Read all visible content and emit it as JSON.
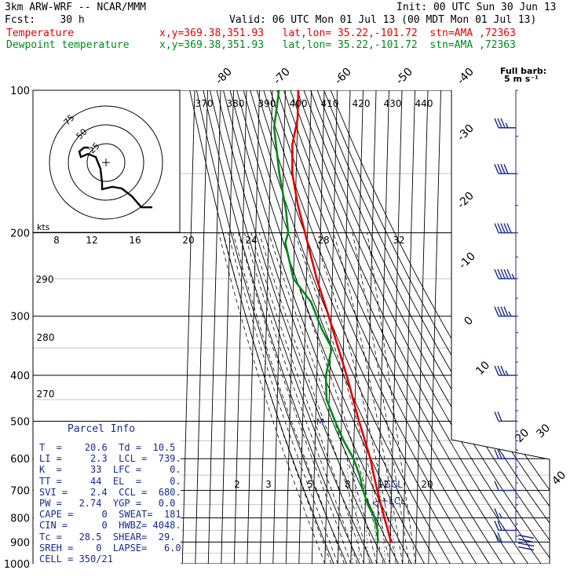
{
  "header": {
    "model": "3km ARW-WRF -- NCAR/MMM",
    "init": "Init: 00 UTC Sun 30 Jun 13",
    "fcst": "Fcst:    30 h",
    "valid": "Valid: 06 UTC Mon 01 Jul 13 (00 MDT Mon 01 Jul 13)",
    "temp_label": "Temperature",
    "temp_loc": "x,y=369.38,351.93   lat,lon= 35.22,-101.72  stn=AMA ,72363",
    "dew_label": "Dewpoint temperature",
    "dew_loc": "x,y=369.38,351.93   lat,lon= 35.22,-101.72  stn=AMA ,72363",
    "full_barb": "Full barb:",
    "full_barb_unit": "5 m s⁻¹"
  },
  "colors": {
    "temperature": "#e10000",
    "dewpoint": "#00891a",
    "wind": "#1a2a8c",
    "grid": "#000000"
  },
  "parcel": {
    "title": "Parcel Info",
    "rows": [
      "T  =    20.6  Td =  10.5",
      "LI =     2.3  LCL =  739.",
      "K  =     33  LFC =     0.",
      "TT =     44  EL  =     0.",
      "SVI =    2.4  CCL =  680.",
      "PW =   2.74  YGP =   0.0",
      "CAPE =     0  SWEAT=  181",
      "CIN =      0  HWBZ= 4048.",
      "Tc =   28.5  SHEAR=  29.",
      "SREH =    0  LAPSE=   6.0",
      "CELL = 350/21"
    ]
  },
  "chart_data": {
    "type": "skew-t",
    "pressure_levels": [
      "100",
      "200",
      "300",
      "400",
      "500",
      "600",
      "700",
      "800",
      "900",
      "1000"
    ],
    "isotherm_labels": [
      "-80",
      "-70",
      "-60",
      "-50",
      "-40",
      "-30",
      "-20",
      "-10",
      "0",
      "10",
      "20",
      "30",
      "40"
    ],
    "theta_labels": [
      "370",
      "380",
      "390",
      "400",
      "410",
      "420",
      "430",
      "440"
    ],
    "mixing_ratio_labels_upper": [
      "8",
      "12",
      "16",
      "20",
      "24",
      "28",
      "32"
    ],
    "mixing_ratio_labels_lower": [
      "2",
      "3",
      "5",
      "8",
      "12",
      "20"
    ],
    "moist_adiabat_labels": [
      "290",
      "280",
      "270"
    ],
    "annotations": {
      "ccl": "CCL",
      "lcl": "LCL",
      "marker": "M"
    },
    "hodograph": {
      "ring_labels": [
        "75",
        "50",
        "25"
      ],
      "unit": "kts"
    },
    "temperature": [
      {
        "p": 900,
        "t": 20.6
      },
      {
        "p": 850,
        "t": 18.0
      },
      {
        "p": 800,
        "t": 15.0
      },
      {
        "p": 750,
        "t": 12.0
      },
      {
        "p": 700,
        "t": 9.0
      },
      {
        "p": 650,
        "t": 6.0
      },
      {
        "p": 600,
        "t": 3.0
      },
      {
        "p": 550,
        "t": -1.5
      },
      {
        "p": 500,
        "t": -6.5
      },
      {
        "p": 450,
        "t": -11.5
      },
      {
        "p": 400,
        "t": -17.0
      },
      {
        "p": 350,
        "t": -24.0
      },
      {
        "p": 300,
        "t": -32.0
      },
      {
        "p": 250,
        "t": -42.0
      },
      {
        "p": 200,
        "t": -52.0
      },
      {
        "p": 175,
        "t": -58.0
      },
      {
        "p": 150,
        "t": -63.0
      },
      {
        "p": 130,
        "t": -63.5
      },
      {
        "p": 115,
        "t": -60.0
      },
      {
        "p": 100,
        "t": -60.0
      }
    ],
    "dewpoint": [
      {
        "p": 900,
        "t": 10.5
      },
      {
        "p": 850,
        "t": 10.0
      },
      {
        "p": 800,
        "t": 7.5
      },
      {
        "p": 750,
        "t": 2.0
      },
      {
        "p": 700,
        "t": -2.0
      },
      {
        "p": 650,
        "t": -5.0
      },
      {
        "p": 600,
        "t": -10.0
      },
      {
        "p": 550,
        "t": -18.0
      },
      {
        "p": 500,
        "t": -25.0
      },
      {
        "p": 450,
        "t": -32.0
      },
      {
        "p": 400,
        "t": -33.0
      },
      {
        "p": 350,
        "t": -29.0
      },
      {
        "p": 320,
        "t": -37.0
      },
      {
        "p": 280,
        "t": -46.0
      },
      {
        "p": 250,
        "t": -60.0
      },
      {
        "p": 210,
        "t": -67.0
      },
      {
        "p": 200,
        "t": -65.0
      },
      {
        "p": 180,
        "t": -67.0
      },
      {
        "p": 150,
        "t": -73.0
      },
      {
        "p": 120,
        "t": -78.0
      },
      {
        "p": 100,
        "t": -75.0
      }
    ],
    "wind_barbs": [
      {
        "p": 900,
        "spd": 20,
        "dir": 200
      },
      {
        "p": 850,
        "spd": 15,
        "dir": 200
      },
      {
        "p": 800,
        "spd": 5,
        "dir": 220
      },
      {
        "p": 700,
        "spd": 10,
        "dir": 250
      },
      {
        "p": 600,
        "spd": 15,
        "dir": 260
      },
      {
        "p": 500,
        "spd": 20,
        "dir": 270
      },
      {
        "p": 400,
        "spd": 25,
        "dir": 280
      },
      {
        "p": 300,
        "spd": 35,
        "dir": 285
      },
      {
        "p": 250,
        "spd": 45,
        "dir": 285
      },
      {
        "p": 200,
        "spd": 50,
        "dir": 280
      },
      {
        "p": 150,
        "spd": 40,
        "dir": 280
      },
      {
        "p": 120,
        "spd": 25,
        "dir": 270
      }
    ]
  }
}
